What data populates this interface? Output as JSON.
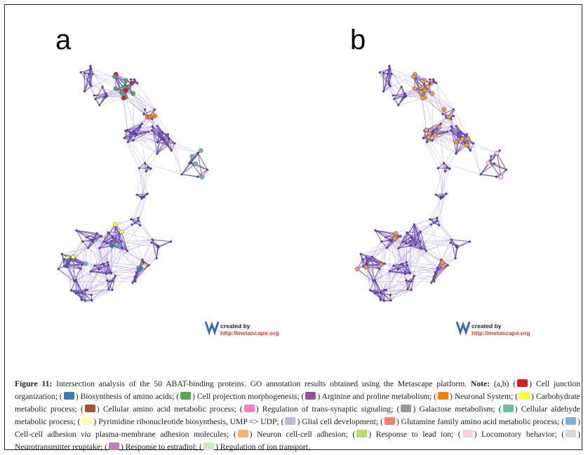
{
  "panels": {
    "a": {
      "letter": "a"
    },
    "b": {
      "letter": "b"
    }
  },
  "credit": {
    "created_by": "created by",
    "url": "http://metascape.org"
  },
  "caption": {
    "label": "Figure 11:",
    "text_main": " Intersection analysis of the 50 ABAT-binding proteins. GO annotation results obtained using the Metascape platform. ",
    "note_label": "Note:",
    "note_panels": " (a,b) (",
    "legend": [
      {
        "color": "#e41a1c",
        "label": "Cell junction organization;",
        "italic": ""
      },
      {
        "color": "#377eb8",
        "label": "Biosynthesis of amino acids;",
        "italic": ""
      },
      {
        "color": "#4daf4a",
        "label": "Cell projection morphogenesis;",
        "italic": ""
      },
      {
        "color": "#984ea3",
        "label": "Arginine and proline metabolism;",
        "italic": ""
      },
      {
        "color": "#ff7f00",
        "label": "Neuronal System;",
        "italic": ""
      },
      {
        "color": "#ffff33",
        "label": "Carbohydrate metabolic process;",
        "italic": ""
      },
      {
        "color": "#a65628",
        "label": "Cellular amino acid metabolic process;",
        "italic": ""
      },
      {
        "color": "#f781bf",
        "label": "Regulation of trans-synaptic signaling;",
        "italic": ""
      },
      {
        "color": "#999999",
        "label": "Galactose metabolism;",
        "italic": ""
      },
      {
        "color": "#66c2a5",
        "label": "Cellular aldehyde metabolic process;",
        "italic": ""
      },
      {
        "color": "#ffffb3",
        "label": "Pyrimidine ribonucleotide biosynthesis, UMP => UDP;",
        "italic": ""
      },
      {
        "color": "#bebada",
        "label": "Glial cell development;",
        "italic": ""
      },
      {
        "color": "#fb8072",
        "label": "Glutamine family amino acid metabolic process;",
        "italic": ""
      },
      {
        "color": "#80b1d3",
        "label_pre": "Cell-cell adhesion ",
        "label_it": "via",
        "label_post": " plasma-membrane adhesion molecules;",
        "italic": "yes"
      },
      {
        "color": "#fdb462",
        "label": "Neuron cell-cell adhesion;",
        "italic": ""
      },
      {
        "color": "#b3de69",
        "label": "Response to lead ion;",
        "italic": ""
      },
      {
        "color": "#fccde5",
        "label": "Locomotory behavior;",
        "italic": ""
      },
      {
        "color": "#d9d9d9",
        "label": "Neurotransmitter reuptake;",
        "italic": ""
      },
      {
        "color": "#bc80bd",
        "label": "Response to estradiol;",
        "italic": ""
      },
      {
        "color": "#ccebc5",
        "label": "Regulation of ion transport.",
        "italic": ""
      }
    ]
  },
  "colors": {
    "edge": "#6a4aa8",
    "edge_light": "#b9a8dc",
    "node_default": "#5b3f9e",
    "panel_b_node": "#f0a030"
  }
}
